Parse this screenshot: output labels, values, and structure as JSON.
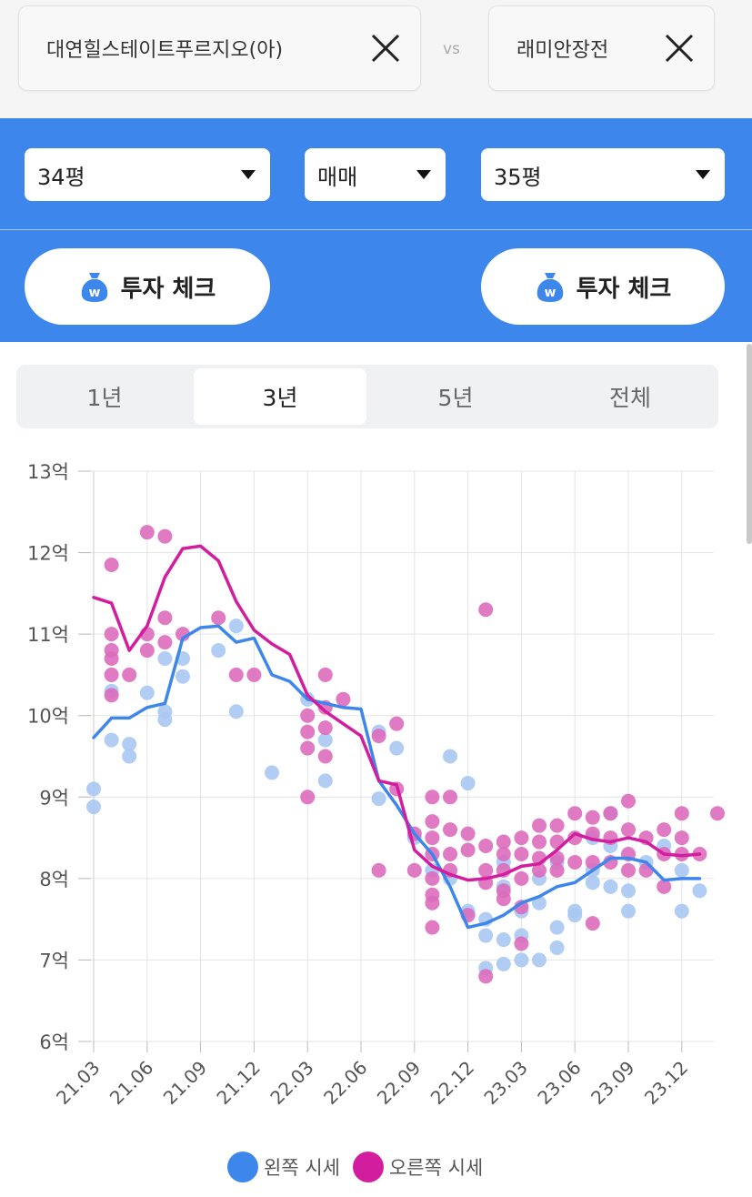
{
  "compare": {
    "left_name": "대연힐스테이트푸르지오(아)",
    "right_name": "래미안장전",
    "vs_label": "vs"
  },
  "filters": {
    "left_size": "34평",
    "trade_type": "매매",
    "right_size": "35평"
  },
  "invest_button_label": "투자 체크",
  "period_tabs": [
    {
      "label": "1년",
      "active": false
    },
    {
      "label": "3년",
      "active": true
    },
    {
      "label": "5년",
      "active": false
    },
    {
      "label": "전체",
      "active": false
    }
  ],
  "colors": {
    "panel_blue": "#3d86ec",
    "left_series": "#3d86ec",
    "left_points": "#a9c8f2",
    "right_series": "#d21e9e",
    "right_points": "#dc6cbc"
  },
  "chart_data": {
    "type": "scatter",
    "ylim": [
      6,
      13
    ],
    "y_ticks": [
      "6억",
      "7억",
      "8억",
      "9억",
      "10억",
      "11억",
      "12억",
      "13억"
    ],
    "x_ticks": [
      "21.03",
      "21.06",
      "21.09",
      "21.12",
      "22.03",
      "22.06",
      "22.09",
      "22.12",
      "23.03",
      "23.06",
      "23.09",
      "23.12"
    ],
    "x_unit": "month index from 21.03",
    "series": [
      {
        "name": "왼쪽 시세",
        "line": [
          [
            0,
            9.73
          ],
          [
            1,
            9.97
          ],
          [
            2,
            9.97
          ],
          [
            3,
            10.1
          ],
          [
            4,
            10.15
          ],
          [
            5,
            10.95
          ],
          [
            6,
            11.08
          ],
          [
            7,
            11.1
          ],
          [
            8,
            10.9
          ],
          [
            9,
            10.95
          ],
          [
            10,
            10.5
          ],
          [
            11,
            10.42
          ],
          [
            12,
            10.2
          ],
          [
            13,
            10.15
          ],
          [
            14,
            10.1
          ],
          [
            15,
            10.08
          ],
          [
            16,
            9.2
          ],
          [
            17,
            8.9
          ],
          [
            18,
            8.55
          ],
          [
            19,
            8.3
          ],
          [
            20,
            7.9
          ],
          [
            21,
            7.4
          ],
          [
            22,
            7.45
          ],
          [
            23,
            7.55
          ],
          [
            24,
            7.7
          ],
          [
            25,
            7.78
          ],
          [
            26,
            7.9
          ],
          [
            27,
            7.95
          ],
          [
            28,
            8.1
          ],
          [
            29,
            8.25
          ],
          [
            30,
            8.25
          ],
          [
            31,
            8.2
          ],
          [
            32,
            7.98
          ],
          [
            33,
            8.0
          ],
          [
            34,
            8.0
          ]
        ],
        "points": [
          [
            0,
            9.1
          ],
          [
            0,
            8.88
          ],
          [
            1,
            10.3
          ],
          [
            1,
            9.7
          ],
          [
            2,
            9.65
          ],
          [
            2,
            9.5
          ],
          [
            3,
            10.28
          ],
          [
            4,
            10.7
          ],
          [
            4,
            10.05
          ],
          [
            4,
            9.95
          ],
          [
            5,
            10.7
          ],
          [
            5,
            10.48
          ],
          [
            7,
            10.8
          ],
          [
            8,
            11.1
          ],
          [
            8,
            10.05
          ],
          [
            10,
            9.3
          ],
          [
            12,
            10.2
          ],
          [
            13,
            9.7
          ],
          [
            13,
            9.2
          ],
          [
            16,
            9.8
          ],
          [
            16,
            8.98
          ],
          [
            17,
            9.6
          ],
          [
            18,
            8.5
          ],
          [
            19,
            8.1
          ],
          [
            20,
            9.5
          ],
          [
            20,
            8.0
          ],
          [
            21,
            9.17
          ],
          [
            21,
            7.6
          ],
          [
            22,
            7.5
          ],
          [
            22,
            7.3
          ],
          [
            22,
            6.9
          ],
          [
            23,
            8.2
          ],
          [
            23,
            7.9
          ],
          [
            23,
            7.25
          ],
          [
            23,
            6.95
          ],
          [
            24,
            7.6
          ],
          [
            24,
            7.3
          ],
          [
            24,
            7.0
          ],
          [
            25,
            8.0
          ],
          [
            25,
            7.7
          ],
          [
            25,
            7.0
          ],
          [
            26,
            8.2
          ],
          [
            26,
            7.4
          ],
          [
            26,
            7.15
          ],
          [
            27,
            7.6
          ],
          [
            27,
            7.55
          ],
          [
            28,
            8.5
          ],
          [
            28,
            8.1
          ],
          [
            28,
            7.95
          ],
          [
            29,
            8.8
          ],
          [
            29,
            8.4
          ],
          [
            29,
            7.9
          ],
          [
            30,
            7.85
          ],
          [
            30,
            7.6
          ],
          [
            31,
            8.2
          ],
          [
            32,
            8.4
          ],
          [
            33,
            8.1
          ],
          [
            33,
            7.6
          ],
          [
            34,
            7.85
          ]
        ]
      },
      {
        "name": "오른쪽 시세",
        "line": [
          [
            0,
            11.45
          ],
          [
            1,
            11.38
          ],
          [
            2,
            10.8
          ],
          [
            3,
            11.1
          ],
          [
            4,
            11.7
          ],
          [
            5,
            12.05
          ],
          [
            6,
            12.08
          ],
          [
            7,
            11.9
          ],
          [
            8,
            11.4
          ],
          [
            9,
            11.05
          ],
          [
            10,
            10.88
          ],
          [
            11,
            10.75
          ],
          [
            12,
            10.25
          ],
          [
            13,
            10.05
          ],
          [
            14,
            9.9
          ],
          [
            15,
            9.75
          ],
          [
            16,
            9.2
          ],
          [
            17,
            9.15
          ],
          [
            18,
            8.35
          ],
          [
            19,
            8.15
          ],
          [
            20,
            8.05
          ],
          [
            21,
            7.98
          ],
          [
            22,
            8.0
          ],
          [
            23,
            8.05
          ],
          [
            24,
            8.15
          ],
          [
            25,
            8.18
          ],
          [
            26,
            8.35
          ],
          [
            27,
            8.55
          ],
          [
            28,
            8.48
          ],
          [
            29,
            8.45
          ],
          [
            30,
            8.5
          ],
          [
            31,
            8.45
          ],
          [
            32,
            8.3
          ],
          [
            33,
            8.28
          ],
          [
            34,
            8.3
          ]
        ],
        "points": [
          [
            1,
            11.85
          ],
          [
            1,
            11.0
          ],
          [
            1,
            10.8
          ],
          [
            1,
            10.7
          ],
          [
            1,
            10.5
          ],
          [
            1,
            10.25
          ],
          [
            2,
            10.5
          ],
          [
            3,
            12.25
          ],
          [
            3,
            11.0
          ],
          [
            3,
            10.8
          ],
          [
            4,
            12.2
          ],
          [
            4,
            11.2
          ],
          [
            4,
            10.9
          ],
          [
            5,
            11.0
          ],
          [
            7,
            11.2
          ],
          [
            8,
            10.5
          ],
          [
            9,
            10.5
          ],
          [
            12,
            10.0
          ],
          [
            12,
            9.8
          ],
          [
            12,
            9.6
          ],
          [
            12,
            9.0
          ],
          [
            13,
            10.5
          ],
          [
            13,
            10.1
          ],
          [
            13,
            9.85
          ],
          [
            13,
            9.5
          ],
          [
            14,
            10.2
          ],
          [
            16,
            9.75
          ],
          [
            16,
            8.1
          ],
          [
            17,
            9.9
          ],
          [
            17,
            9.1
          ],
          [
            18,
            8.55
          ],
          [
            18,
            8.1
          ],
          [
            19,
            9.0
          ],
          [
            19,
            8.7
          ],
          [
            19,
            8.5
          ],
          [
            19,
            8.3
          ],
          [
            19,
            8.0
          ],
          [
            19,
            7.8
          ],
          [
            19,
            7.7
          ],
          [
            19,
            7.4
          ],
          [
            20,
            9.0
          ],
          [
            20,
            8.6
          ],
          [
            20,
            8.3
          ],
          [
            20,
            8.1
          ],
          [
            21,
            8.55
          ],
          [
            21,
            8.35
          ],
          [
            21,
            7.55
          ],
          [
            22,
            11.3
          ],
          [
            22,
            8.4
          ],
          [
            22,
            8.1
          ],
          [
            22,
            7.95
          ],
          [
            22,
            6.8
          ],
          [
            23,
            8.45
          ],
          [
            23,
            8.3
          ],
          [
            23,
            8.1
          ],
          [
            23,
            7.85
          ],
          [
            23,
            7.75
          ],
          [
            24,
            8.5
          ],
          [
            24,
            8.3
          ],
          [
            24,
            8.0
          ],
          [
            24,
            7.65
          ],
          [
            24,
            7.2
          ],
          [
            25,
            8.65
          ],
          [
            25,
            8.45
          ],
          [
            25,
            8.25
          ],
          [
            25,
            8.1
          ],
          [
            26,
            8.65
          ],
          [
            26,
            8.45
          ],
          [
            26,
            8.25
          ],
          [
            26,
            8.1
          ],
          [
            27,
            8.8
          ],
          [
            27,
            8.5
          ],
          [
            27,
            8.2
          ],
          [
            28,
            8.75
          ],
          [
            28,
            8.55
          ],
          [
            28,
            8.2
          ],
          [
            28,
            7.45
          ],
          [
            29,
            8.8
          ],
          [
            29,
            8.5
          ],
          [
            29,
            8.2
          ],
          [
            30,
            8.95
          ],
          [
            30,
            8.6
          ],
          [
            30,
            8.3
          ],
          [
            30,
            8.1
          ],
          [
            31,
            8.5
          ],
          [
            31,
            8.1
          ],
          [
            32,
            8.6
          ],
          [
            32,
            8.3
          ],
          [
            32,
            7.9
          ],
          [
            33,
            8.8
          ],
          [
            33,
            8.5
          ],
          [
            33,
            8.3
          ],
          [
            34,
            8.3
          ],
          [
            35,
            8.8
          ]
        ]
      }
    ],
    "legend_position": "bottom-center"
  }
}
